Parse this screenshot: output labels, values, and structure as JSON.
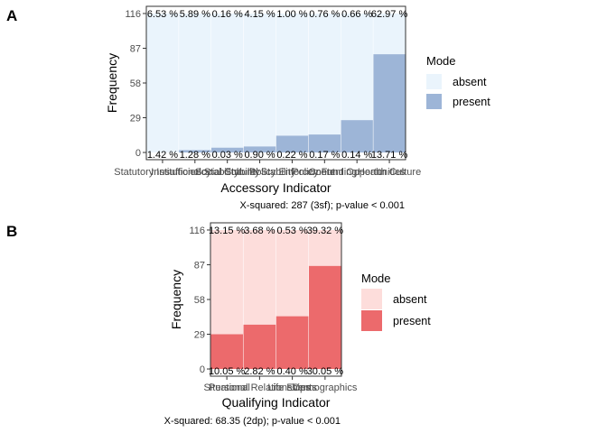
{
  "chart_data": [
    {
      "panel": "A",
      "type": "bar",
      "stacked": true,
      "categories": [
        "Statutory Insufficiency",
        "Institutional Stability",
        "Social Stability",
        "Cultural Stability",
        "Policy Enforcement",
        "Policy Funding",
        "Content Opportunities",
        "Health Culture"
      ],
      "series": [
        {
          "name": "present",
          "values": [
            0,
            2,
            4,
            5,
            14,
            15,
            27,
            82
          ]
        },
        {
          "name": "absent",
          "values": [
            116,
            114,
            112,
            111,
            102,
            101,
            89,
            34
          ]
        }
      ],
      "present_labels": [
        "1.42 %",
        "1.28 %",
        "0.03 %",
        "0.90 %",
        "0.22 %",
        "0.17 %",
        "0.14 %",
        "13.71 %"
      ],
      "absent_labels": [
        "6.53 %",
        "5.89 %",
        "0.16 %",
        "4.15 %",
        "1.00 %",
        "0.76 %",
        "0.66 %",
        "62.97 %"
      ],
      "xlabel": "Accessory Indicator",
      "ylabel": "Frequency",
      "yticks": [
        0,
        29,
        58,
        87,
        116
      ],
      "ylim": [
        -6,
        122
      ],
      "legend": {
        "title": "Mode",
        "entries": [
          "absent",
          "present"
        ],
        "placement": "right"
      },
      "caption": "X-squared: 287 (3sf); p-value < 0.001",
      "colors": {
        "absent": "#eaf4fc",
        "present": "#9db5d7"
      }
    },
    {
      "panel": "B",
      "type": "bar",
      "stacked": true,
      "categories": [
        "Situational",
        "Personal Relationships",
        "Life Events",
        "Demographics"
      ],
      "series": [
        {
          "name": "present",
          "values": [
            29,
            37,
            44,
            86
          ]
        },
        {
          "name": "absent",
          "values": [
            87,
            79,
            72,
            30
          ]
        }
      ],
      "present_labels": [
        "10.05 %",
        "2.82 %",
        "0.40 %",
        "30.05 %"
      ],
      "absent_labels": [
        "13.15 %",
        "3.68 %",
        "0.53 %",
        "39.32 %"
      ],
      "xlabel": "Qualifying Indicator",
      "ylabel": "Frequency",
      "yticks": [
        0,
        29,
        58,
        87,
        116
      ],
      "ylim": [
        -6,
        122
      ],
      "legend": {
        "title": "Mode",
        "entries": [
          "absent",
          "present"
        ],
        "placement": "right"
      },
      "caption": "X-squared: 68.35 (2dp); p-value < 0.001",
      "colors": {
        "absent": "#fddddb",
        "present": "#ec6a6c"
      }
    }
  ]
}
